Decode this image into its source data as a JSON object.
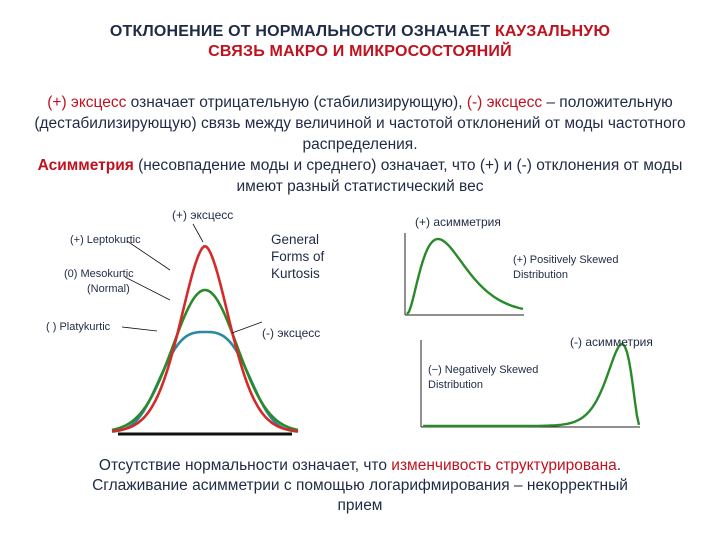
{
  "title": {
    "line1_black": "ОТКЛОНЕНИЕ ОТ НОРМАЛЬНОСТИ ОЗНАЧАЕТ ",
    "line1_red": "КАУЗАЛЬНУЮ",
    "line2_red": "СВЯЗЬ МАКРО И МИКРОСОСТОЯНИЙ"
  },
  "intro": {
    "p1_red": "(+) эксцесс",
    "p1_text": " означает отрицательную (стабилизирующую), ",
    "p1_red2": "(-) эксцесс",
    "p1_text2": " – положительную (дестабилизирующую) связь между величиной и частотой отклонений от моды частотного распределения.",
    "p2_red": "Асимметрия",
    "p2_text": " (несовпадение моды и среднего) означает, что (+) и (-) отклонения от моды имеют разный статистический вес"
  },
  "kurtosis_panel": {
    "caption_pos": "(+) эксцесс",
    "caption_neg": "(-) эксцесс",
    "heading": "General Forms of Kurtosis",
    "heading_lines": [
      "General",
      "Forms of",
      "Kurtosis"
    ],
    "lepto": "(+) Leptokurtic",
    "meso": "(0) Mesokurtic",
    "meso_sub": "(Normal)",
    "platy": "( ) Platykurtic",
    "colors": {
      "lepto": "#d42a2a",
      "meso": "#2a8a2a",
      "platy": "#2a8aa0"
    }
  },
  "skew_panel": {
    "caption_pos": "(+) асимметрия",
    "caption_neg": "(-) асимметрия",
    "pos_label_lines": [
      "(+) Positively Skewed",
      "Distribution"
    ],
    "neg_label_lines": [
      "(−) Negatively Skewed",
      "Distribution"
    ],
    "curve_color": "#2a8a2a"
  },
  "footer": {
    "l1_text": "Отсутствие нормальности означает, что ",
    "l1_red": "изменчивость структурирована",
    "l1_end": ".",
    "l2": "Сглаживание асимметрии с помощью логарифмирования – некорректный прием"
  }
}
